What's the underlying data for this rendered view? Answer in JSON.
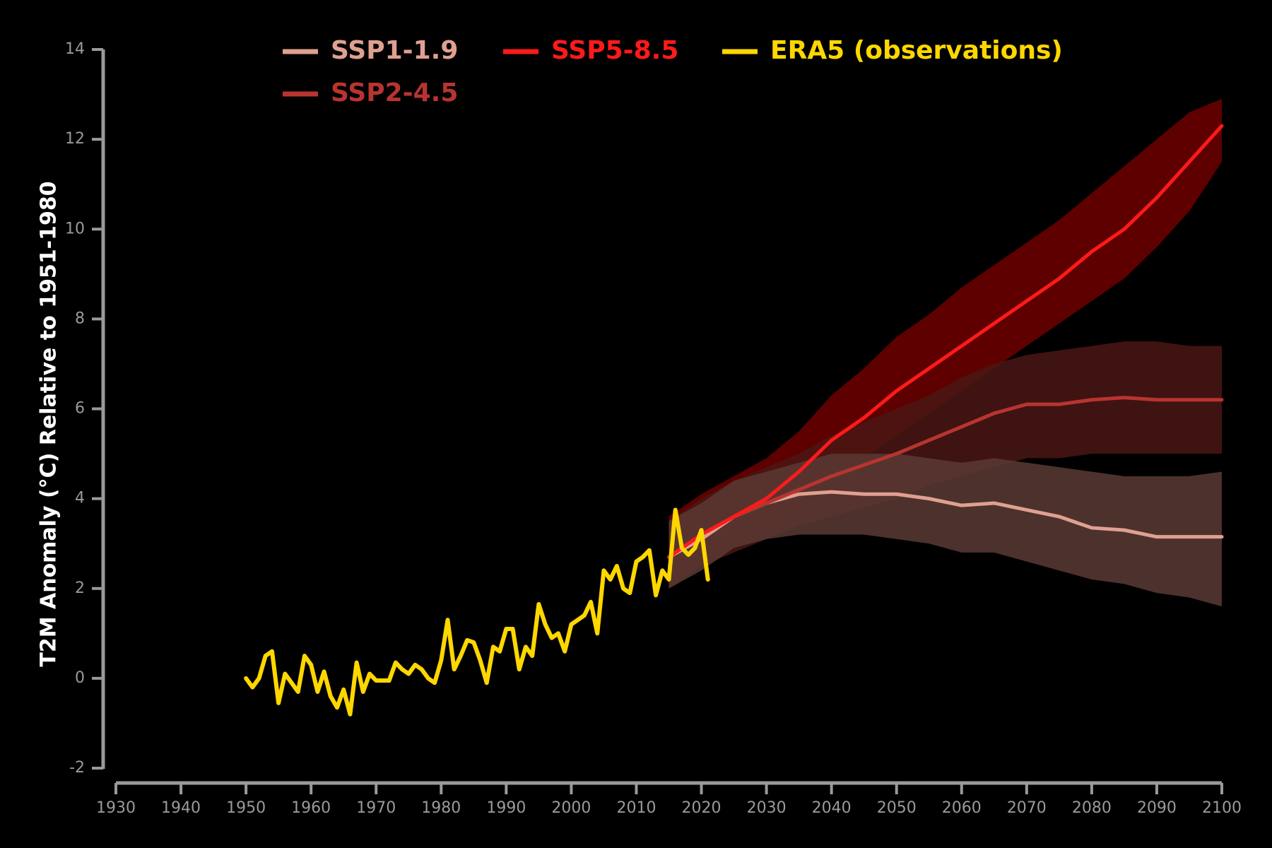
{
  "chart_data": {
    "type": "line",
    "title": "",
    "xlabel": "",
    "ylabel": "T2M Anomaly (°C) Relative to 1951-1980",
    "xlim": [
      1930,
      2100
    ],
    "ylim": [
      -2,
      14
    ],
    "x_ticks": [
      "1930",
      "1940",
      "1950",
      "1960",
      "1970",
      "1980",
      "1990",
      "2000",
      "2010",
      "2020",
      "2030",
      "2040",
      "2050",
      "2060",
      "2070",
      "2080",
      "2090",
      "2100"
    ],
    "y_ticks": [
      "-2",
      "0",
      "2",
      "4",
      "6",
      "8",
      "10",
      "12",
      "14"
    ],
    "grid": false,
    "legend_position": "top",
    "series": [
      {
        "name": "SSP1-1.9",
        "color": "#e0a090",
        "band_color": "#5a3a34",
        "x": [
          2015,
          2020,
          2025,
          2030,
          2035,
          2040,
          2045,
          2050,
          2055,
          2060,
          2065,
          2070,
          2075,
          2080,
          2085,
          2090,
          2095,
          2100
        ],
        "mean": [
          2.7,
          3.1,
          3.6,
          3.9,
          4.1,
          4.15,
          4.1,
          4.1,
          4.0,
          3.85,
          3.9,
          3.75,
          3.6,
          3.35,
          3.3,
          3.15,
          3.15,
          3.15
        ],
        "lower": [
          2.0,
          2.4,
          2.9,
          3.1,
          3.2,
          3.2,
          3.2,
          3.1,
          3.0,
          2.8,
          2.8,
          2.6,
          2.4,
          2.2,
          2.1,
          1.9,
          1.8,
          1.6
        ],
        "upper": [
          3.5,
          3.9,
          4.4,
          4.6,
          4.8,
          5.0,
          5.0,
          5.0,
          4.9,
          4.8,
          4.9,
          4.8,
          4.7,
          4.6,
          4.5,
          4.5,
          4.5,
          4.6
        ]
      },
      {
        "name": "SSP2-4.5",
        "color": "#b83430",
        "band_color": "#4a1614",
        "x": [
          2015,
          2020,
          2025,
          2030,
          2035,
          2040,
          2045,
          2050,
          2055,
          2060,
          2065,
          2070,
          2075,
          2080,
          2085,
          2090,
          2095,
          2100
        ],
        "mean": [
          2.7,
          3.2,
          3.6,
          3.9,
          4.2,
          4.5,
          4.75,
          5.0,
          5.3,
          5.6,
          5.9,
          6.1,
          6.1,
          6.2,
          6.25,
          6.2,
          6.2,
          6.2
        ],
        "lower": [
          2.0,
          2.5,
          2.8,
          3.1,
          3.4,
          3.6,
          3.8,
          4.0,
          4.3,
          4.5,
          4.7,
          4.9,
          4.9,
          5.0,
          5.0,
          5.0,
          5.0,
          5.0
        ],
        "upper": [
          3.5,
          4.0,
          4.4,
          4.7,
          5.0,
          5.4,
          5.7,
          6.0,
          6.3,
          6.7,
          7.0,
          7.2,
          7.3,
          7.4,
          7.5,
          7.5,
          7.4,
          7.4
        ]
      },
      {
        "name": "SSP5-8.5",
        "color": "#ff1a1a",
        "band_color": "#6e0000",
        "x": [
          2015,
          2020,
          2025,
          2030,
          2035,
          2040,
          2045,
          2050,
          2055,
          2060,
          2065,
          2070,
          2075,
          2080,
          2085,
          2090,
          2095,
          2100
        ],
        "mean": [
          2.7,
          3.2,
          3.6,
          4.0,
          4.6,
          5.3,
          5.8,
          6.4,
          6.9,
          7.4,
          7.9,
          8.4,
          8.9,
          9.5,
          10.0,
          10.7,
          11.5,
          12.3
        ],
        "lower": [
          2.0,
          2.5,
          2.9,
          3.3,
          3.8,
          4.4,
          4.9,
          5.4,
          5.9,
          6.4,
          6.9,
          7.4,
          7.9,
          8.4,
          8.9,
          9.6,
          10.4,
          11.5
        ],
        "upper": [
          3.6,
          4.1,
          4.5,
          4.9,
          5.5,
          6.3,
          6.9,
          7.6,
          8.1,
          8.7,
          9.2,
          9.7,
          10.2,
          10.8,
          11.4,
          12.0,
          12.6,
          12.9
        ]
      },
      {
        "name": "ERA5 (observations)",
        "color": "#ffd700",
        "x": [
          1950,
          1951,
          1952,
          1953,
          1954,
          1955,
          1956,
          1957,
          1958,
          1959,
          1960,
          1961,
          1962,
          1963,
          1964,
          1965,
          1966,
          1967,
          1968,
          1969,
          1970,
          1971,
          1972,
          1973,
          1974,
          1975,
          1976,
          1977,
          1978,
          1979,
          1980,
          1981,
          1982,
          1983,
          1984,
          1985,
          1986,
          1987,
          1988,
          1989,
          1990,
          1991,
          1992,
          1993,
          1994,
          1995,
          1996,
          1997,
          1998,
          1999,
          2000,
          2001,
          2002,
          2003,
          2004,
          2005,
          2006,
          2007,
          2008,
          2009,
          2010,
          2011,
          2012,
          2013,
          2014,
          2015,
          2016,
          2017,
          2018,
          2019,
          2020,
          2021
        ],
        "y": [
          0.0,
          -0.2,
          0.0,
          0.5,
          0.6,
          -0.55,
          0.1,
          -0.1,
          -0.3,
          0.5,
          0.3,
          -0.3,
          0.15,
          -0.4,
          -0.65,
          -0.25,
          -0.8,
          0.35,
          -0.3,
          0.1,
          -0.05,
          -0.05,
          -0.05,
          0.35,
          0.2,
          0.1,
          0.3,
          0.2,
          0.0,
          -0.1,
          0.4,
          1.3,
          0.2,
          0.5,
          0.85,
          0.8,
          0.4,
          -0.1,
          0.7,
          0.6,
          1.1,
          1.1,
          0.2,
          0.7,
          0.5,
          1.65,
          1.2,
          0.9,
          1.0,
          0.6,
          1.2,
          1.3,
          1.4,
          1.7,
          1.0,
          2.4,
          2.2,
          2.5,
          2.0,
          1.9,
          2.6,
          2.7,
          2.85,
          1.85,
          2.4,
          2.2,
          3.75,
          2.9,
          2.75,
          2.9,
          3.3,
          2.2
        ]
      }
    ]
  }
}
